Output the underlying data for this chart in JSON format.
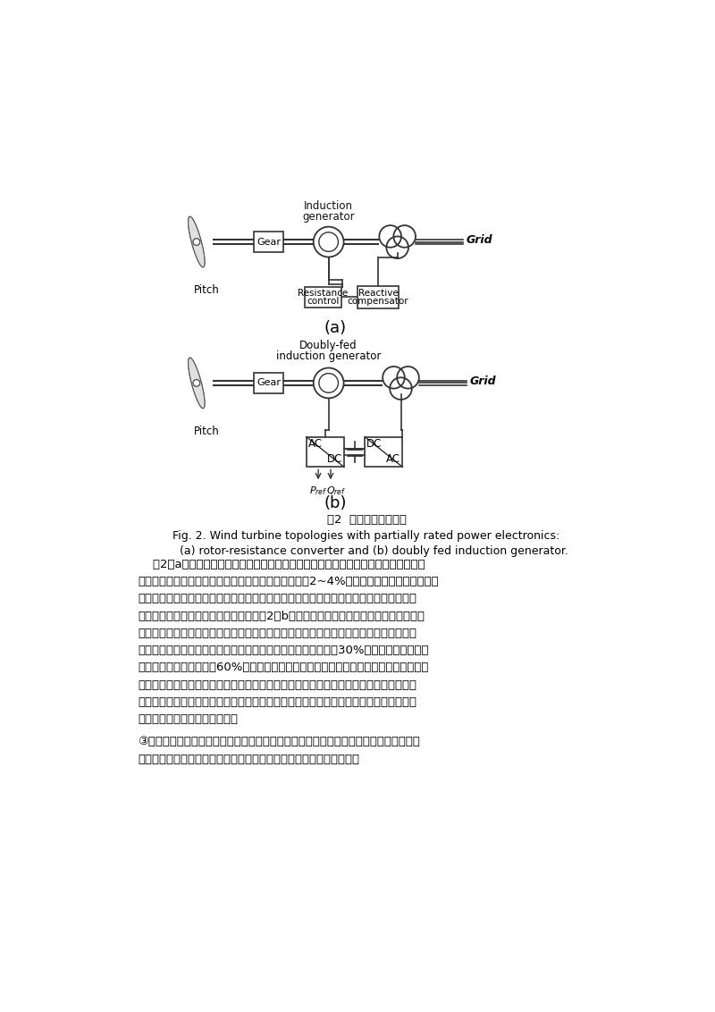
{
  "bg_color": "#ffffff",
  "page_width": 8.0,
  "page_height": 11.32,
  "fig_caption_zh": "图2  部分功率变换系统",
  "fig_caption_en1": "Fig. 2. Wind turbine topologies with partially rated power electronics:",
  "fig_caption_en2": "    (a) rotor-resistance converter and (b) doubly fed induction generator.",
  "lines1": [
    "    图2（a）所示的风力发电系统的发电机是绕线转子的感应电动机，一个由电力电子控",
    "制的阻抗串联在转子绕组中，使电机的转速可调范围在2~4%之间。转子阻抗控制功率变换",
    "器具有低电压大电流的特性，同时，获得一个保持输出功率固定的一个控制自由度，这种",
    "方案同样需要软启动器和无功补偿器。图2（b）方案使用一个中等功率变换器，功率变换",
    "器通过一个滑环控制转子电流。如果发电机运行在超同步，电气功率通过电机定子和转子",
    "发出，如果发电机运行在亚同步，电功率通过电网提供给转子。30%额定功率的功率变换",
    "器可以达到围绕同步速的60%的速度变化范围。进一步说，电力电子功率变换器的功率可",
    "以更高，根据要求的故障容量限制和无功的控制能力，可以提高电网的电能质量。这种方",
    "案和经典结构比有些昂贵，然而，可以节约齿轮调速装置，同时具有无功补偿和发出的能",
    "力，并且可以捕捉更大的风能。"
  ],
  "lines2": [
    "③是连接在电网和发电机间的全功率变换器，这种结构会在功率变换电路中增加额外的损",
    "耗，但是将获取技术性能的提高，下图所示了全功率变换器的拓补结构"
  ]
}
